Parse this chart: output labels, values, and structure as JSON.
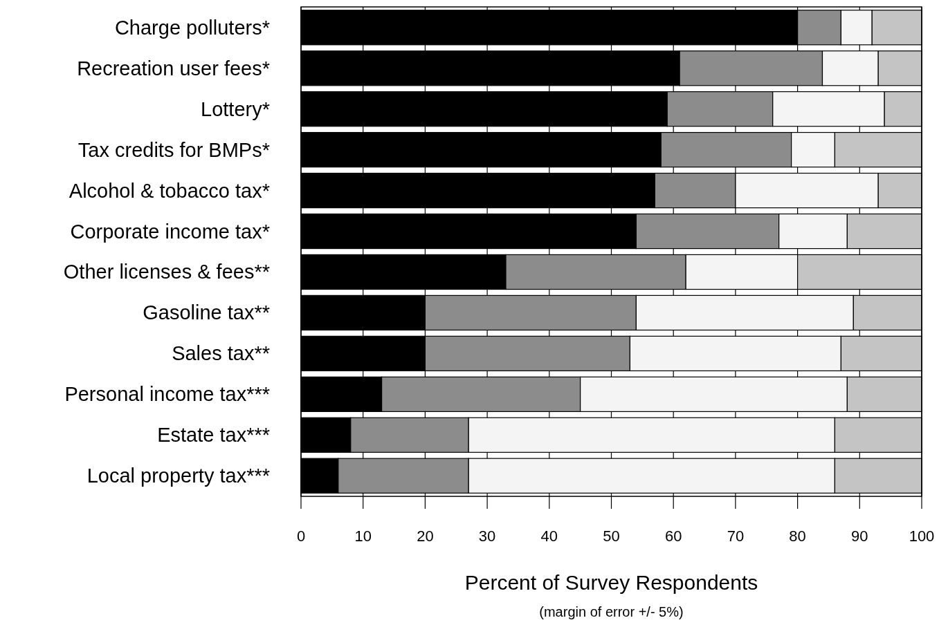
{
  "chart_data": {
    "type": "bar",
    "orientation": "horizontal",
    "stacked": true,
    "categories": [
      "Charge polluters*",
      "Recreation user fees*",
      "Lottery*",
      "Tax credits for BMPs*",
      "Alcohol & tobacco tax*",
      "Corporate income tax*",
      "Other licenses & fees**",
      "Gasoline tax**",
      "Sales tax**",
      "Personal income tax***",
      "Estate tax***",
      "Local property tax***"
    ],
    "series": [
      {
        "color": "#000000",
        "values": [
          80,
          61,
          59,
          58,
          57,
          54,
          33,
          20,
          20,
          13,
          8,
          6
        ]
      },
      {
        "color": "#8c8c8c",
        "values": [
          7,
          23,
          17,
          21,
          13,
          23,
          29,
          34,
          33,
          32,
          19,
          21
        ]
      },
      {
        "color": "#f4f4f4",
        "values": [
          5,
          9,
          18,
          7,
          23,
          11,
          18,
          35,
          34,
          43,
          59,
          59
        ]
      },
      {
        "color": "#c4c4c4",
        "values": [
          8,
          7,
          6,
          14,
          7,
          12,
          20,
          11,
          13,
          12,
          14,
          14
        ]
      }
    ],
    "xlim": [
      0,
      100
    ],
    "xticks": [
      0,
      10,
      20,
      30,
      40,
      50,
      60,
      70,
      80,
      90,
      100
    ],
    "grid": "x",
    "xlabel": "Percent of Survey Respondents",
    "annotations": [
      "(margin of error +/- 5%)"
    ]
  }
}
